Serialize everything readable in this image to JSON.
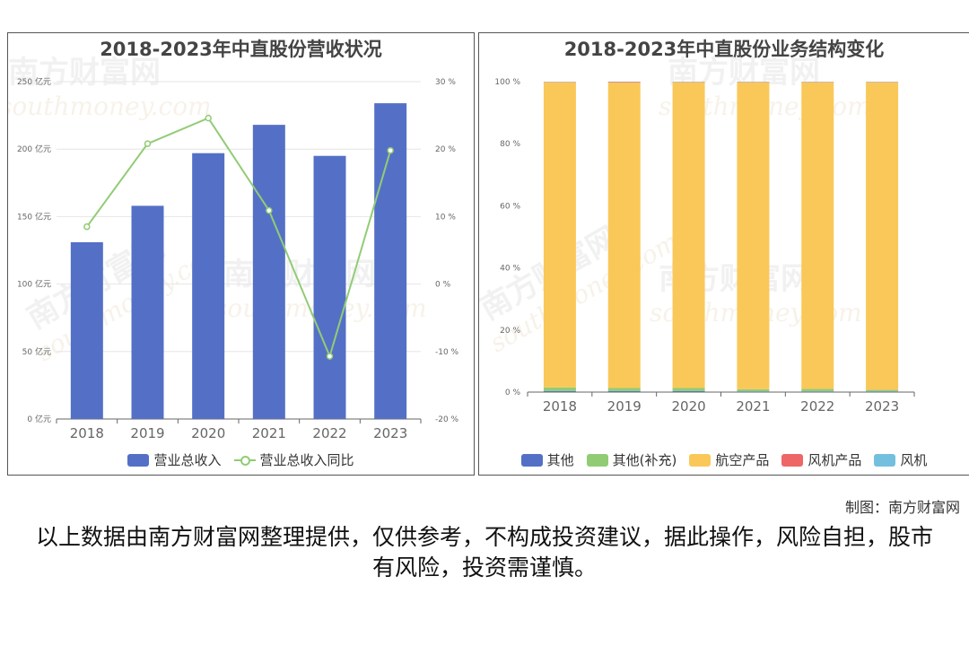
{
  "credit": "制图：南方财富网",
  "disclaimer": "以上数据由南方财富网整理提供，仅供参考，不构成投资建议，据此操作，风险自担，股市有风险，投资需谨慎。",
  "watermark": {
    "cn": "南方财富网",
    "en": "southmoney.com"
  },
  "colors": {
    "blue": "#5470c6",
    "green": "#91cc75",
    "yellow": "#fac858",
    "red": "#ee6666",
    "cyan": "#73c0de"
  },
  "chart_data": [
    {
      "type": "bar",
      "title": "2018-2023年中直股份营收状况",
      "categories": [
        "2018",
        "2019",
        "2020",
        "2021",
        "2022",
        "2023"
      ],
      "series": [
        {
          "name": "营业总收入",
          "type": "bar",
          "axis": "left",
          "color": "#5470c6",
          "values": [
            131,
            158,
            197,
            218,
            195,
            234
          ]
        },
        {
          "name": "营业总收入同比",
          "type": "line",
          "axis": "right",
          "color": "#91cc75",
          "values": [
            8.5,
            20.8,
            24.6,
            10.9,
            -10.7,
            19.8
          ]
        }
      ],
      "y_left": {
        "ticks": [
          "0 亿元",
          "50 亿元",
          "100 亿元",
          "150 亿元",
          "200 亿元",
          "250 亿元"
        ],
        "min": 0,
        "max": 250
      },
      "y_right": {
        "ticks": [
          "-20 %",
          "-10 %",
          "0 %",
          "10 %",
          "20 %",
          "30 %"
        ],
        "min": -20,
        "max": 30
      },
      "legend": "bottom"
    },
    {
      "type": "bar",
      "stacked": true,
      "title": "2018-2023年中直股份业务结构变化",
      "categories": [
        "2018",
        "2019",
        "2020",
        "2021",
        "2022",
        "2023"
      ],
      "series": [
        {
          "name": "其他",
          "color": "#5470c6",
          "values": [
            0.3,
            0.3,
            0.3,
            0.2,
            0.2,
            0.2
          ]
        },
        {
          "name": "其他(补充)",
          "color": "#91cc75",
          "values": [
            1.2,
            1.0,
            1.0,
            0.7,
            0.8,
            0.5
          ]
        },
        {
          "name": "航空产品",
          "color": "#fac858",
          "values": [
            98.3,
            98.4,
            98.5,
            98.9,
            98.8,
            99.1
          ]
        },
        {
          "name": "风机产品",
          "color": "#ee6666",
          "values": [
            0.1,
            0.2,
            0.1,
            0.1,
            0.1,
            0.1
          ]
        },
        {
          "name": "风机",
          "color": "#73c0de",
          "values": [
            0.1,
            0.1,
            0.1,
            0.1,
            0.1,
            0.1
          ]
        }
      ],
      "y_ticks": [
        "0 %",
        "20 %",
        "40 %",
        "60 %",
        "80 %",
        "100 %"
      ],
      "ylim": [
        0,
        100
      ],
      "legend": "bottom"
    }
  ]
}
